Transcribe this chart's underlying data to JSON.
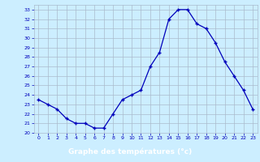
{
  "hours": [
    0,
    1,
    2,
    3,
    4,
    5,
    6,
    7,
    8,
    9,
    10,
    11,
    12,
    13,
    14,
    15,
    16,
    17,
    18,
    19,
    20,
    21,
    22,
    23
  ],
  "temperatures": [
    23.5,
    23.0,
    22.5,
    21.5,
    21.0,
    21.0,
    20.5,
    20.5,
    22.0,
    23.5,
    24.0,
    24.5,
    27.0,
    28.5,
    32.0,
    33.0,
    33.0,
    31.5,
    31.0,
    29.5,
    27.5,
    26.0,
    24.5,
    22.5
  ],
  "xlabel": "Graphe des températures (°c)",
  "ylim": [
    20,
    33.5
  ],
  "xlim": [
    -0.5,
    23.5
  ],
  "yticks": [
    20,
    21,
    22,
    23,
    24,
    25,
    26,
    27,
    28,
    29,
    30,
    31,
    32,
    33
  ],
  "xticks": [
    0,
    1,
    2,
    3,
    4,
    5,
    6,
    7,
    8,
    9,
    10,
    11,
    12,
    13,
    14,
    15,
    16,
    17,
    18,
    19,
    20,
    21,
    22,
    23
  ],
  "line_color": "#0000bb",
  "marker_color": "#0000bb",
  "bg_color": "#cceeff",
  "grid_color": "#aabbcc",
  "xlabel_bg": "#0000cc",
  "xlabel_color": "#ffffff"
}
